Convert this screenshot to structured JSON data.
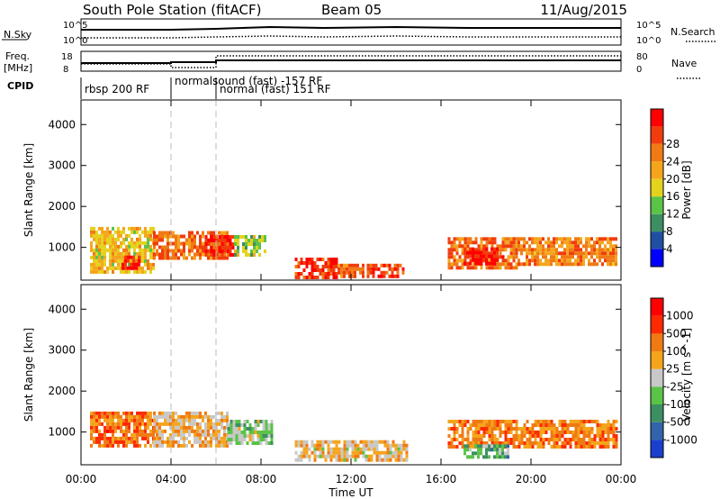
{
  "header": {
    "title": "South Pole Station (fitACF)",
    "beam": "Beam 05",
    "date": "11/Aug/2015"
  },
  "strip": {
    "nsky_label": "N.Sky",
    "nsky_ticks": [
      "10^5",
      "10^0"
    ],
    "nsearch_label": "N.Search",
    "nsearch_ticks": [
      "10^5",
      "10^0"
    ],
    "freq_label_1": "Freq.",
    "freq_label_2": "[MHz]",
    "freq_ticks": [
      "18",
      "8"
    ],
    "nave_label": "Nave",
    "nave_ticks": [
      "80",
      "0"
    ],
    "cpid_label": "CPID",
    "cpid_segments": [
      "rbsp 200 RF",
      "normalsound (fast) -157 RF",
      "normal (fast) 151 RF"
    ]
  },
  "power_panel": {
    "ylabel": "Slant Range [km]",
    "yticks": [
      "1000",
      "2000",
      "3000",
      "4000"
    ],
    "colorbar_label": "Power [dB]",
    "colorbar_ticks": [
      "4",
      "8",
      "12",
      "16",
      "20",
      "24",
      "28"
    ],
    "colors": [
      "#0000ff",
      "#1f4fa3",
      "#3c8f62",
      "#5ac348",
      "#e5d21c",
      "#f5a51c",
      "#f07a14",
      "#f13c0d",
      "#ff0000"
    ]
  },
  "velocity_panel": {
    "ylabel": "Slant Range [km]",
    "yticks": [
      "1000",
      "2000",
      "3000",
      "4000"
    ],
    "colorbar_label": "Velocity [m s^-1]",
    "colorbar_ticks": [
      "1000",
      "500",
      "100",
      "25",
      "-25",
      "-100",
      "-500",
      "-1000"
    ],
    "colors": [
      "#1a3fcf",
      "#3164a8",
      "#3c8f62",
      "#5ac348",
      "#c8c8c8",
      "#f5a51c",
      "#f07a14",
      "#ff2a00",
      "#ff0000"
    ]
  },
  "xaxis": {
    "label": "Time UT",
    "ticks": [
      "00:00",
      "04:00",
      "08:00",
      "12:00",
      "16:00",
      "20:00",
      "00:00"
    ]
  },
  "chart_data": [
    {
      "type": "heatmap",
      "title": "South Pole Station (fitACF) Beam 05",
      "xlabel": "Time UT",
      "ylabel": "Slant Range [km]",
      "xlim": [
        0,
        24
      ],
      "ylim": [
        200,
        4600
      ],
      "colorbar": {
        "label": "Power [dB]",
        "range": [
          0,
          32
        ]
      },
      "regions": [
        {
          "t0": 0.4,
          "t1": 3.2,
          "r0": 400,
          "r1": 1500,
          "value": 18
        },
        {
          "t0": 1.8,
          "t1": 2.6,
          "r0": 450,
          "r1": 800,
          "value": 28
        },
        {
          "t0": 3.2,
          "t1": 6.5,
          "r0": 700,
          "r1": 1400,
          "value": 24
        },
        {
          "t0": 5.5,
          "t1": 6.8,
          "r0": 800,
          "r1": 1300,
          "value": 28
        },
        {
          "t0": 6.8,
          "t1": 8.2,
          "r0": 800,
          "r1": 1300,
          "value": 14
        },
        {
          "t0": 9.5,
          "t1": 11.4,
          "r0": 280,
          "r1": 750,
          "value": 28
        },
        {
          "t0": 11.4,
          "t1": 12.5,
          "r0": 300,
          "r1": 600,
          "value": 24
        },
        {
          "t0": 12.7,
          "t1": 14.3,
          "r0": 300,
          "r1": 600,
          "value": 28
        },
        {
          "t0": 16.3,
          "t1": 19.4,
          "r0": 500,
          "r1": 1250,
          "value": 24
        },
        {
          "t0": 17.0,
          "t1": 18.5,
          "r0": 600,
          "r1": 1000,
          "value": 30
        },
        {
          "t0": 19.4,
          "t1": 23.8,
          "r0": 550,
          "r1": 1250,
          "value": 22
        }
      ]
    },
    {
      "type": "heatmap",
      "xlabel": "Time UT",
      "ylabel": "Slant Range [km]",
      "xlim": [
        0,
        24
      ],
      "ylim": [
        200,
        4600
      ],
      "colorbar": {
        "label": "Velocity [m s^-1]",
        "range": [
          -1000,
          1000
        ]
      },
      "regions": [
        {
          "t0": 0.4,
          "t1": 3.2,
          "r0": 700,
          "r1": 1500,
          "value": 500
        },
        {
          "t0": 3.2,
          "t1": 6.5,
          "r0": 700,
          "r1": 1500,
          "value": 200
        },
        {
          "t0": 6.5,
          "t1": 8.5,
          "r0": 700,
          "r1": 1300,
          "value": -100
        },
        {
          "t0": 9.5,
          "t1": 14.5,
          "r0": 280,
          "r1": 800,
          "value": 150
        },
        {
          "t0": 16.3,
          "t1": 23.8,
          "r0": 600,
          "r1": 1300,
          "value": 400
        },
        {
          "t0": 17.0,
          "t1": 19.0,
          "r0": 350,
          "r1": 700,
          "value": -300
        }
      ]
    }
  ]
}
